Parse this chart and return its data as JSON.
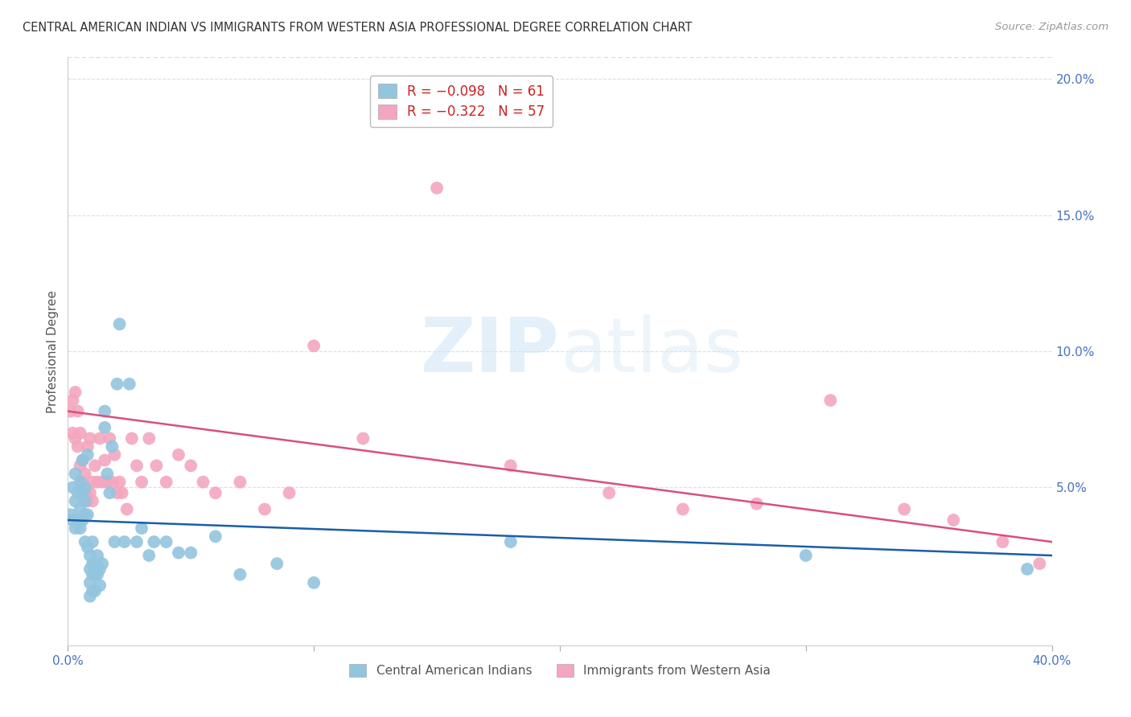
{
  "title": "CENTRAL AMERICAN INDIAN VS IMMIGRANTS FROM WESTERN ASIA PROFESSIONAL DEGREE CORRELATION CHART",
  "source": "Source: ZipAtlas.com",
  "ylabel": "Professional Degree",
  "right_yticks": [
    "20.0%",
    "15.0%",
    "10.0%",
    "5.0%"
  ],
  "right_ytick_vals": [
    0.2,
    0.15,
    0.1,
    0.05
  ],
  "legend_label1": "Central American Indians",
  "legend_label2": "Immigrants from Western Asia",
  "color_blue": "#92c5de",
  "color_pink": "#f4a6be",
  "color_blue_line": "#1a5ea8",
  "color_pink_line": "#d94f7e",
  "color_axis_text": "#4472c4",
  "color_title": "#333333",
  "color_source": "#999999",
  "color_ylabel": "#555555",
  "color_grid": "#dddddd",
  "color_spine": "#cccccc",
  "watermark_zip": "ZIP",
  "watermark_atlas": "atlas",
  "xmin": 0.0,
  "xmax": 0.4,
  "ymin": -0.008,
  "ymax": 0.208,
  "xtick_positions": [
    0.0,
    0.1,
    0.2,
    0.3,
    0.4
  ],
  "xtick_labels_show": [
    "0.0%",
    "",
    "",
    "",
    "40.0%"
  ],
  "blue_line_x": [
    0.0,
    0.4
  ],
  "blue_line_y": [
    0.038,
    0.025
  ],
  "pink_line_x": [
    0.0,
    0.4
  ],
  "pink_line_y": [
    0.078,
    0.03
  ],
  "blue_x": [
    0.001,
    0.002,
    0.002,
    0.003,
    0.003,
    0.003,
    0.004,
    0.004,
    0.005,
    0.005,
    0.005,
    0.006,
    0.006,
    0.006,
    0.007,
    0.007,
    0.007,
    0.007,
    0.008,
    0.008,
    0.008,
    0.009,
    0.009,
    0.009,
    0.009,
    0.01,
    0.01,
    0.01,
    0.01,
    0.011,
    0.011,
    0.011,
    0.012,
    0.012,
    0.013,
    0.013,
    0.014,
    0.015,
    0.015,
    0.016,
    0.017,
    0.018,
    0.019,
    0.02,
    0.021,
    0.023,
    0.025,
    0.028,
    0.03,
    0.033,
    0.035,
    0.04,
    0.045,
    0.05,
    0.06,
    0.07,
    0.085,
    0.1,
    0.18,
    0.3,
    0.39
  ],
  "blue_y": [
    0.04,
    0.038,
    0.05,
    0.055,
    0.045,
    0.035,
    0.048,
    0.038,
    0.052,
    0.042,
    0.035,
    0.06,
    0.048,
    0.038,
    0.05,
    0.045,
    0.04,
    0.03,
    0.062,
    0.04,
    0.028,
    0.025,
    0.02,
    0.015,
    0.01,
    0.03,
    0.022,
    0.018,
    0.012,
    0.022,
    0.018,
    0.012,
    0.025,
    0.018,
    0.02,
    0.014,
    0.022,
    0.072,
    0.078,
    0.055,
    0.048,
    0.065,
    0.03,
    0.088,
    0.11,
    0.03,
    0.088,
    0.03,
    0.035,
    0.025,
    0.03,
    0.03,
    0.026,
    0.026,
    0.032,
    0.018,
    0.022,
    0.015,
    0.03,
    0.025,
    0.02
  ],
  "pink_x": [
    0.001,
    0.002,
    0.002,
    0.003,
    0.003,
    0.004,
    0.004,
    0.005,
    0.005,
    0.006,
    0.006,
    0.007,
    0.007,
    0.008,
    0.008,
    0.009,
    0.009,
    0.01,
    0.01,
    0.011,
    0.012,
    0.013,
    0.014,
    0.015,
    0.016,
    0.017,
    0.018,
    0.019,
    0.02,
    0.021,
    0.022,
    0.024,
    0.026,
    0.028,
    0.03,
    0.033,
    0.036,
    0.04,
    0.045,
    0.05,
    0.055,
    0.06,
    0.07,
    0.08,
    0.09,
    0.1,
    0.12,
    0.15,
    0.18,
    0.22,
    0.25,
    0.28,
    0.31,
    0.34,
    0.36,
    0.38,
    0.395
  ],
  "pink_y": [
    0.078,
    0.082,
    0.07,
    0.085,
    0.068,
    0.078,
    0.065,
    0.07,
    0.058,
    0.06,
    0.052,
    0.055,
    0.048,
    0.065,
    0.045,
    0.068,
    0.048,
    0.052,
    0.045,
    0.058,
    0.052,
    0.068,
    0.052,
    0.06,
    0.052,
    0.068,
    0.052,
    0.062,
    0.048,
    0.052,
    0.048,
    0.042,
    0.068,
    0.058,
    0.052,
    0.068,
    0.058,
    0.052,
    0.062,
    0.058,
    0.052,
    0.048,
    0.052,
    0.042,
    0.048,
    0.102,
    0.068,
    0.16,
    0.058,
    0.048,
    0.042,
    0.044,
    0.082,
    0.042,
    0.038,
    0.03,
    0.022
  ]
}
